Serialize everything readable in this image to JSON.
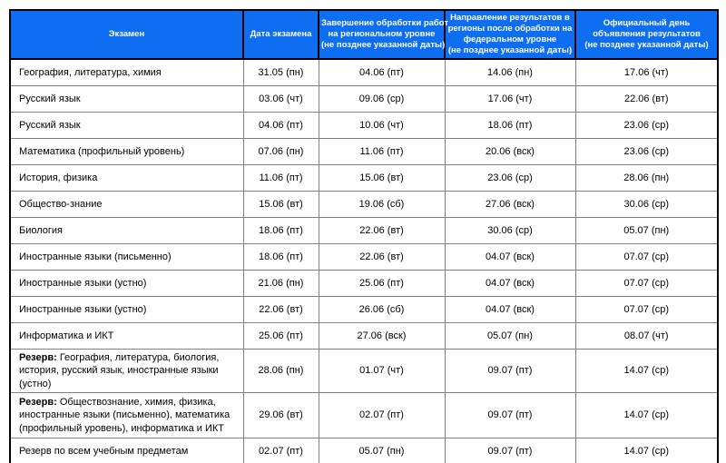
{
  "colors": {
    "header_bg": "#0d6ef2",
    "header_text": "#ffffff",
    "grid_line": "#808080",
    "outer_border": "#000000"
  },
  "table": {
    "headers": {
      "exam": "Экзамен",
      "date": "Дата экзамена",
      "regional": [
        "Завершение обработки работ",
        "на региональном уровне",
        "(не позднее указанной даты)"
      ],
      "federal": [
        "Направление результатов в",
        "регионы после обработки на",
        "федеральном уровне",
        "(не позднее указанной даты)"
      ],
      "official": [
        "Официальный день",
        "объявления результатов",
        "(не позднее указанной даты)"
      ]
    },
    "rows": [
      {
        "exam": "География, литература, химия",
        "exam_date": "31.05 (пн)",
        "regional": "04.06 (пт)",
        "federal": "14.06 (пн)",
        "official": "17.06 (чт)"
      },
      {
        "exam": "Русский язык",
        "exam_date": "03.06 (чт)",
        "regional": "09.06 (ср)",
        "federal": "17.06 (чт)",
        "official": "22.06 (вт)"
      },
      {
        "exam": "Русский язык",
        "exam_date": "04.06 (пт)",
        "regional": "10.06 (чт)",
        "federal": "18.06 (пт)",
        "official": "23.06 (ср)"
      },
      {
        "exam": "Математика (профильный уровень)",
        "exam_date": "07.06 (пн)",
        "regional": "11.06 (пт)",
        "federal": "20.06 (вск)",
        "official": "23.06 (ср)"
      },
      {
        "exam": "История, физика",
        "exam_date": "11.06 (пт)",
        "regional": "15.06 (вт)",
        "federal": "23.06 (ср)",
        "official": "28.06 (пн)"
      },
      {
        "exam": "Общество-знание",
        "exam_date": "15.06 (вт)",
        "regional": "19.06 (сб)",
        "federal": "27.06 (вск)",
        "official": "30.06 (ср)"
      },
      {
        "exam": "Биология",
        "exam_date": "18.06 (пт)",
        "regional": "22.06 (вт)",
        "federal": "30.06 (ср)",
        "official": "05.07 (пн)"
      },
      {
        "exam": "Иностранные языки (письменно)",
        "exam_date": "18.06 (пт)",
        "regional": "22.06 (вт)",
        "federal": "04.07 (вск)",
        "official": "07.07 (ср)"
      },
      {
        "exam": "Иностранные языки (устно)",
        "exam_date": "21.06 (пн)",
        "regional": "25.06 (пт)",
        "federal": "04.07 (вск)",
        "official": "07.07 (ср)"
      },
      {
        "exam": "Иностранные языки (устно)",
        "exam_date": "22.06 (вт)",
        "regional": "26.06 (сб)",
        "federal": "04.07 (вск)",
        "official": "07.07 (ср)"
      },
      {
        "exam": "Информатика и ИКТ",
        "exam_date": "25.06 (пт)",
        "regional": "27.06 (вск)",
        "federal": "05.07 (пн)",
        "official": "08.07 (чт)"
      },
      {
        "reserve": "Резерв: ",
        "exam": "География, литература, биология, история, русский язык, иностранные языки (устно)",
        "exam_date": "28.06 (пн)",
        "regional": "01.07 (чт)",
        "federal": "09.07 (пт)",
        "official": "14.07 (ср)"
      },
      {
        "reserve": "Резерв: ",
        "exam": "Обществознание, химия, физика, иностранные языки (письменно), математика (профильный уровень), информатика и ИКТ",
        "exam_date": "29.06 (вт)",
        "regional": "02.07 (пт)",
        "federal": "09.07 (пт)",
        "official": "14.07 (ср)"
      },
      {
        "exam": "Резерв по всем учебным предметам",
        "exam_date": "02.07 (пт)",
        "regional": "05.07 (пн)",
        "federal": "09.07 (пт)",
        "official": "14.07 (ср)"
      }
    ]
  }
}
